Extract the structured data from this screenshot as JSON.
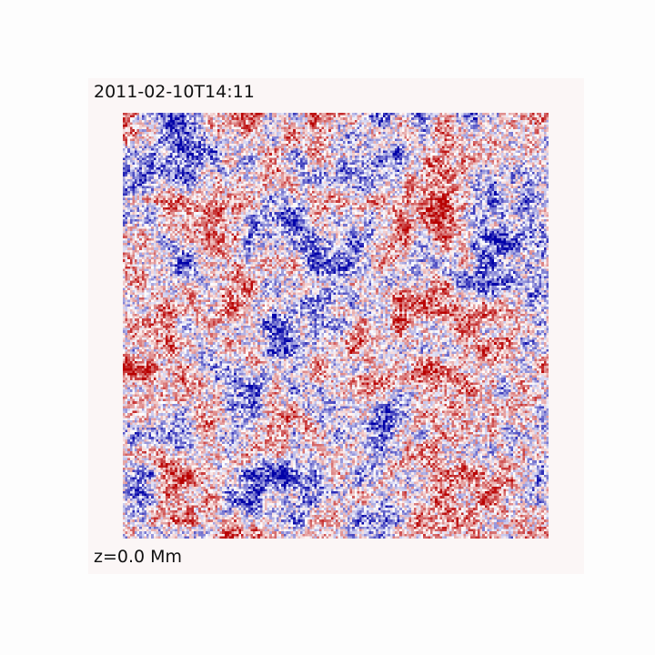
{
  "figure": {
    "timestamp": "2011-02-10T14:11",
    "height_label": "z=0.0 Mm"
  },
  "colormap": {
    "negative": "#0000a8",
    "zero": "#ffffff",
    "positive": "#b80000"
  }
}
